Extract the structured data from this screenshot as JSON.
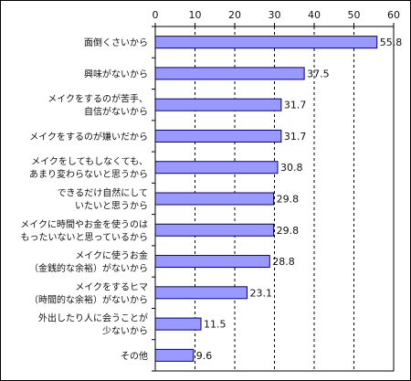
{
  "chart_data": {
    "type": "bar",
    "orientation": "horizontal",
    "categories": [
      "面倒くさいから",
      "興味がないから",
      "メイクをするのが苦手、\n自信がないから",
      "メイクをするのが嫌いだから",
      "メイクをしてもしなくても、\nあまり変わらないと思うから",
      "できるだけ自然にして\nいたいと思うから",
      "メイクに時間やお金を使うのは\nもったいないと思っているから",
      "メイクに使うお金\n（金銭的な余裕）がないから",
      "メイクをするヒマ\n（時間的な余裕）がないから",
      "外出したり人に会うことが\n少ないから",
      "その他"
    ],
    "values": [
      55.8,
      37.5,
      31.7,
      31.7,
      30.8,
      29.8,
      29.8,
      28.8,
      23.1,
      11.5,
      9.6
    ],
    "value_labels": [
      "55.8",
      "37.5",
      "31.7",
      "31.7",
      "30.8",
      "29.8",
      "29.8",
      "28.8",
      "23.1",
      "11.5",
      "9.6"
    ],
    "x_ticks": [
      0,
      10,
      20,
      30,
      40,
      50,
      60
    ],
    "xlim": [
      0,
      60
    ],
    "grid": true,
    "gridline_style": "dashed",
    "bar_color": "#9999FF",
    "bar_edge_color": "#000080"
  }
}
